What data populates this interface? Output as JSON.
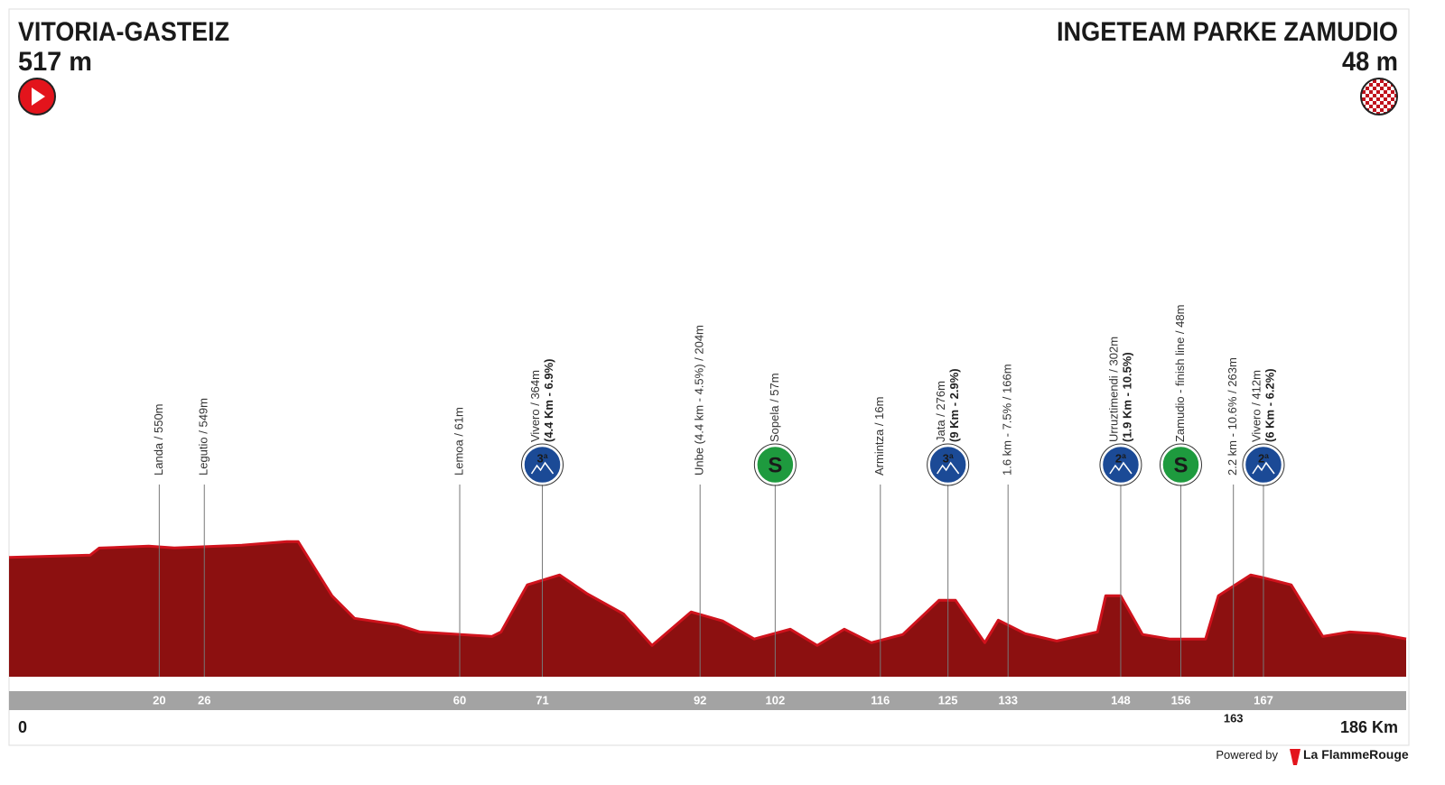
{
  "header": {
    "start_name": "VITORIA-GASTEIZ",
    "start_alt": "517 m",
    "finish_name": "INGETEAM PARKE ZAMUDIO",
    "finish_alt": "48 m"
  },
  "chart_data": {
    "type": "area",
    "color": "#8c1010",
    "line_color": "#d0121c",
    "x": [
      0,
      10.8,
      12,
      18.6,
      22,
      31,
      37,
      38.5,
      43,
      46,
      51.7,
      54.7,
      64.3,
      65.5,
      69,
      73.3,
      77,
      81.8,
      85.6,
      90.8,
      95,
      99.2,
      104,
      107.6,
      111.2,
      114.8,
      119,
      123.8,
      126,
      129.9,
      131.7,
      135.3,
      139.5,
      144.9,
      146,
      148,
      150.9,
      154.5,
      159.3,
      161,
      165.3,
      167,
      170.7,
      174.9,
      178.5,
      182.2,
      186
    ],
    "values": [
      517,
      530,
      571,
      582,
      572,
      587,
      608,
      608,
      296,
      166,
      130,
      88,
      62,
      88,
      359,
      416,
      307,
      192,
      10,
      203,
      151,
      47,
      104,
      10,
      104,
      26,
      73,
      270,
      270,
      26,
      156,
      78,
      36,
      88,
      296,
      296,
      73,
      47,
      47,
      296,
      416,
      400,
      359,
      62,
      88,
      78,
      48
    ],
    "xlim": [
      0,
      186
    ],
    "ylim": [
      -170,
      3000
    ],
    "start_label": "0",
    "end_label": "186 Km",
    "markers": [
      {
        "km": 20,
        "label": "Landa / 550m"
      },
      {
        "km": 26,
        "label": "Legutio / 549m"
      },
      {
        "km": 60,
        "label": "Lemoa / 61m"
      },
      {
        "km": 71,
        "label": "Vivero / 364m",
        "detail": "(4.4 Km - 6.9%)",
        "icon": "3ª",
        "icon_color": "#1b4a96"
      },
      {
        "km": 92,
        "label": "Unbe (4.4 km - 4.5%) / 204m"
      },
      {
        "km": 102,
        "label": "Sopela / 57m",
        "icon": "S",
        "icon_color": "#1e9a3e"
      },
      {
        "km": 116,
        "label": "Armintza / 16m"
      },
      {
        "km": 125,
        "label": "Jata / 276m",
        "detail": "(9 Km - 2.9%)",
        "icon": "3ª",
        "icon_color": "#1b4a96"
      },
      {
        "km": 133,
        "label": "1.6 km  - 7.5% / 166m"
      },
      {
        "km": 148,
        "label": "Urruztimendi / 302m",
        "detail": "(1.9 Km - 10.5%)",
        "icon": "2ª",
        "icon_color": "#1b4a96"
      },
      {
        "km": 156,
        "label": "Zamudio - finish line / 48m",
        "icon": "S",
        "icon_color": "#1e9a3e"
      },
      {
        "km": 163,
        "label": "2.2 km - 10.6% / 263m",
        "below": true
      },
      {
        "km": 167,
        "label": "Vivero / 412m",
        "detail": "(6 Km - 6.2%)",
        "icon": "2ª",
        "icon_color": "#1b4a96"
      }
    ]
  },
  "footer": {
    "powered": "Powered by",
    "brand": "La FlammeRouge"
  }
}
